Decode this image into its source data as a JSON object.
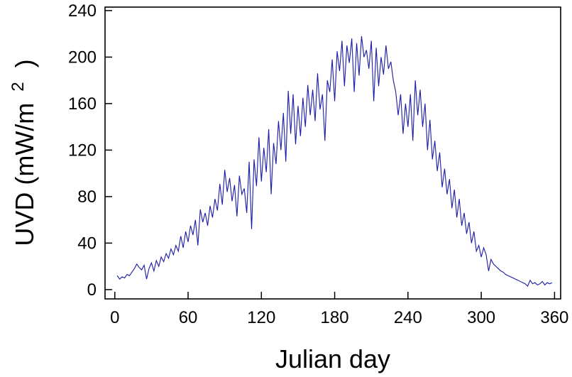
{
  "chart_data": {
    "type": "line",
    "title": "",
    "xlabel": "Julian day",
    "ylabel_main": "UVD (mW/m",
    "ylabel_sup": "2",
    "ylabel_end": ")",
    "xlim": [
      -8,
      365
    ],
    "ylim": [
      -8,
      243
    ],
    "xticks": [
      0,
      60,
      120,
      180,
      240,
      300,
      360
    ],
    "yticks": [
      0,
      40,
      80,
      120,
      160,
      200,
      240
    ],
    "grid": false,
    "line_color": "#1a1aa6",
    "series": [
      {
        "x": [
          2,
          4,
          6,
          8,
          10,
          12,
          14,
          16,
          18,
          20,
          22,
          24,
          26,
          28,
          30,
          32,
          34,
          36,
          38,
          40,
          42,
          44,
          46,
          48,
          50,
          52,
          54,
          56,
          58,
          60,
          62,
          64,
          66,
          68,
          70,
          72,
          74,
          76,
          78,
          80,
          82,
          84,
          86,
          88,
          90,
          92,
          94,
          96,
          98,
          100,
          102,
          104,
          106,
          108,
          110,
          112,
          114,
          116,
          118,
          120,
          122,
          124,
          126,
          128,
          130,
          132,
          134,
          136,
          138,
          140,
          142,
          144,
          146,
          148,
          150,
          152,
          154,
          156,
          158,
          160,
          162,
          164,
          166,
          168,
          170,
          172,
          174,
          176,
          178,
          180,
          182,
          184,
          186,
          188,
          190,
          192,
          194,
          196,
          198,
          200,
          202,
          204,
          206,
          208,
          210,
          212,
          214,
          216,
          218,
          220,
          222,
          224,
          226,
          228,
          230,
          232,
          234,
          236,
          238,
          240,
          242,
          244,
          246,
          248,
          250,
          252,
          254,
          256,
          258,
          260,
          262,
          264,
          266,
          268,
          270,
          272,
          274,
          276,
          278,
          280,
          282,
          284,
          286,
          288,
          290,
          292,
          294,
          296,
          298,
          300,
          302,
          304,
          306,
          308,
          310,
          312,
          314,
          316,
          318,
          320,
          322,
          324,
          326,
          328,
          330,
          332,
          334,
          336,
          338,
          340,
          342,
          344,
          346,
          348,
          350,
          352,
          354,
          356,
          358
        ],
        "y": [
          12,
          9,
          11,
          10,
          13,
          12,
          15,
          18,
          22,
          19,
          17,
          21,
          9,
          18,
          23,
          16,
          25,
          20,
          28,
          24,
          31,
          27,
          35,
          30,
          38,
          33,
          46,
          36,
          50,
          41,
          55,
          47,
          60,
          38,
          69,
          58,
          66,
          55,
          72,
          62,
          78,
          68,
          91,
          73,
          103,
          84,
          96,
          76,
          90,
          63,
          98,
          82,
          87,
          66,
          110,
          52,
          112,
          89,
          131,
          93,
          122,
          101,
          138,
          82,
          126,
          108,
          145,
          120,
          152,
          110,
          171,
          134,
          168,
          125,
          158,
          132,
          165,
          140,
          176,
          150,
          172,
          145,
          186,
          155,
          168,
          128,
          180,
          170,
          198,
          162,
          205,
          188,
          214,
          175,
          210,
          195,
          216,
          170,
          212,
          184,
          218,
          200,
          206,
          190,
          214,
          162,
          208,
          175,
          200,
          185,
          210,
          190,
          196,
          180,
          170,
          150,
          168,
          134,
          160,
          140,
          168,
          128,
          180,
          150,
          172,
          140,
          160,
          120,
          146,
          112,
          128,
          102,
          118,
          88,
          104,
          82,
          95,
          70,
          86,
          62,
          78,
          55,
          66,
          48,
          58,
          40,
          50,
          33,
          38,
          28,
          36,
          30,
          16,
          26,
          22,
          20,
          18,
          16,
          15,
          13,
          12,
          11,
          10,
          9,
          8,
          7,
          6,
          5,
          3,
          8,
          5,
          6,
          4,
          5,
          7,
          4,
          6,
          5,
          6
        ]
      }
    ]
  }
}
